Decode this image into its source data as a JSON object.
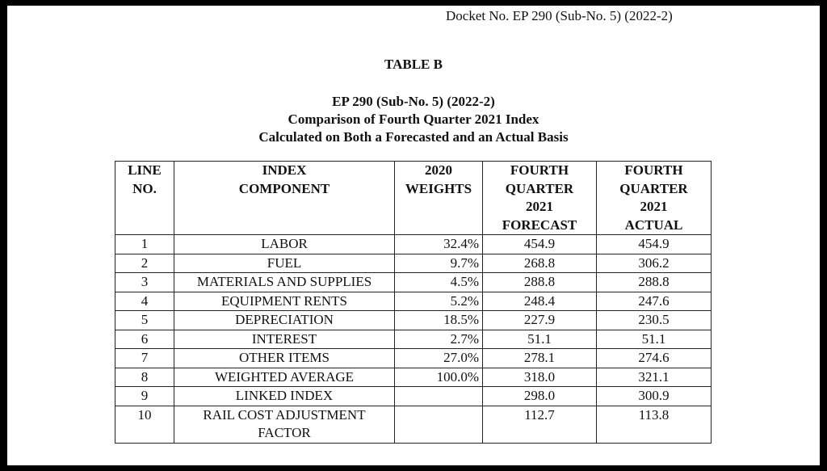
{
  "docket": "Docket No. EP 290 (Sub-No. 5) (2022-2)",
  "table_label": "TABLE B",
  "subtitle1": "EP 290 (Sub-No. 5) (2022-2)",
  "subtitle2": "Comparison of Fourth Quarter 2021 Index",
  "subtitle3": "Calculated on Both a Forecasted and an Actual Basis",
  "headers": [
    [
      "LINE",
      "NO."
    ],
    [
      "INDEX",
      "COMPONENT"
    ],
    [
      "2020",
      "WEIGHTS"
    ],
    [
      "FOURTH",
      "QUARTER",
      "2021",
      "FORECAST"
    ],
    [
      "FOURTH",
      "QUARTER",
      "2021",
      "ACTUAL"
    ]
  ],
  "rows": [
    {
      "line": "1",
      "component": "LABOR",
      "weight": "32.4%",
      "forecast": "454.9",
      "actual": "454.9"
    },
    {
      "line": "2",
      "component": "FUEL",
      "weight": "9.7%",
      "forecast": "268.8",
      "actual": "306.2"
    },
    {
      "line": "3",
      "component": "MATERIALS AND SUPPLIES",
      "weight": "4.5%",
      "forecast": "288.8",
      "actual": "288.8"
    },
    {
      "line": "4",
      "component": "EQUIPMENT RENTS",
      "weight": "5.2%",
      "forecast": "248.4",
      "actual": "247.6"
    },
    {
      "line": "5",
      "component": "DEPRECIATION",
      "weight": "18.5%",
      "forecast": "227.9",
      "actual": "230.5"
    },
    {
      "line": "6",
      "component": "INTEREST",
      "weight": "2.7%",
      "forecast": "51.1",
      "actual": "51.1"
    },
    {
      "line": "7",
      "component": "OTHER ITEMS",
      "weight": "27.0%",
      "forecast": "278.1",
      "actual": "274.6"
    },
    {
      "line": "8",
      "component": "WEIGHTED AVERAGE",
      "weight": "100.0%",
      "forecast": "318.0",
      "actual": "321.1"
    },
    {
      "line": "9",
      "component": "LINKED INDEX",
      "weight": "",
      "forecast": "298.0",
      "actual": "300.9"
    },
    {
      "line": "10",
      "component": "RAIL COST ADJUSTMENT FACTOR",
      "weight": "",
      "forecast": "112.7",
      "actual": "113.8"
    }
  ]
}
